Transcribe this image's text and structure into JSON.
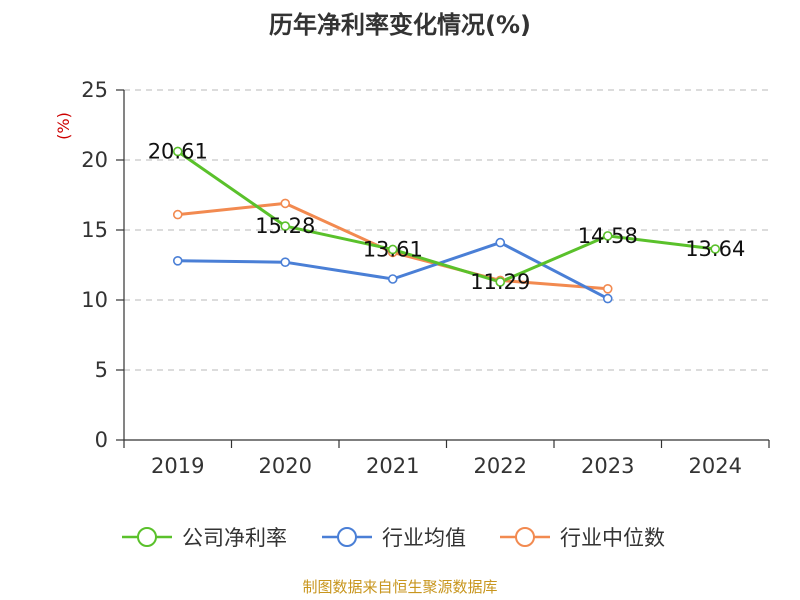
{
  "chart_data": {
    "type": "line",
    "title": "历年净利率变化情况(%)",
    "ylabel": "(%)",
    "xlabel": "",
    "categories": [
      "2019",
      "2020",
      "2021",
      "2022",
      "2023",
      "2024"
    ],
    "ylim": [
      0,
      25
    ],
    "yticks": [
      0,
      5,
      10,
      15,
      20,
      25
    ],
    "grid": "horizontal-dashed",
    "legend_position": "bottom",
    "series": [
      {
        "name": "公司净利率",
        "color": "#5ac12b",
        "values": [
          20.61,
          15.28,
          13.61,
          11.29,
          14.58,
          13.64
        ],
        "labels": [
          "20.61",
          "15.28",
          "13.61",
          "11.29",
          "14.58",
          "13.64"
        ]
      },
      {
        "name": "行业均值",
        "color": "#4a7fd6",
        "values": [
          12.8,
          12.7,
          11.5,
          14.1,
          10.1,
          null
        ]
      },
      {
        "name": "行业中位数",
        "color": "#f28a50",
        "values": [
          16.1,
          16.9,
          13.4,
          11.4,
          10.8,
          null
        ]
      }
    ]
  },
  "source": "制图数据来自恒生聚源数据库"
}
